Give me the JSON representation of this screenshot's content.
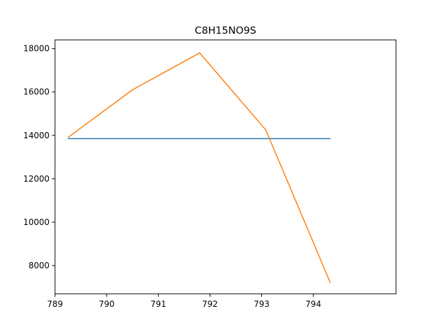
{
  "chart_data": {
    "type": "line",
    "title": "C8H15NO9S",
    "xlabel": "",
    "ylabel": "",
    "xlim": [
      789.0,
      795.6
    ],
    "ylim": [
      6700,
      18400
    ],
    "x_ticks": [
      789,
      790,
      791,
      792,
      793,
      794
    ],
    "y_ticks": [
      8000,
      10000,
      12000,
      14000,
      16000,
      18000
    ],
    "x_tick_labels": [
      "789",
      "790",
      "791",
      "792",
      "793",
      "794"
    ],
    "y_tick_labels": [
      "8000",
      "10000",
      "12000",
      "14000",
      "16000",
      "18000"
    ],
    "grid": false,
    "legend": null,
    "series": [
      {
        "color": "#1f77b4",
        "x": [
          789.25,
          794.33
        ],
        "y": [
          13850,
          13850
        ]
      },
      {
        "color": "#ff7f0e",
        "x": [
          789.25,
          790.5,
          791.8,
          793.08,
          794.33
        ],
        "y": [
          13900,
          16100,
          17800,
          14250,
          7200
        ]
      }
    ]
  }
}
